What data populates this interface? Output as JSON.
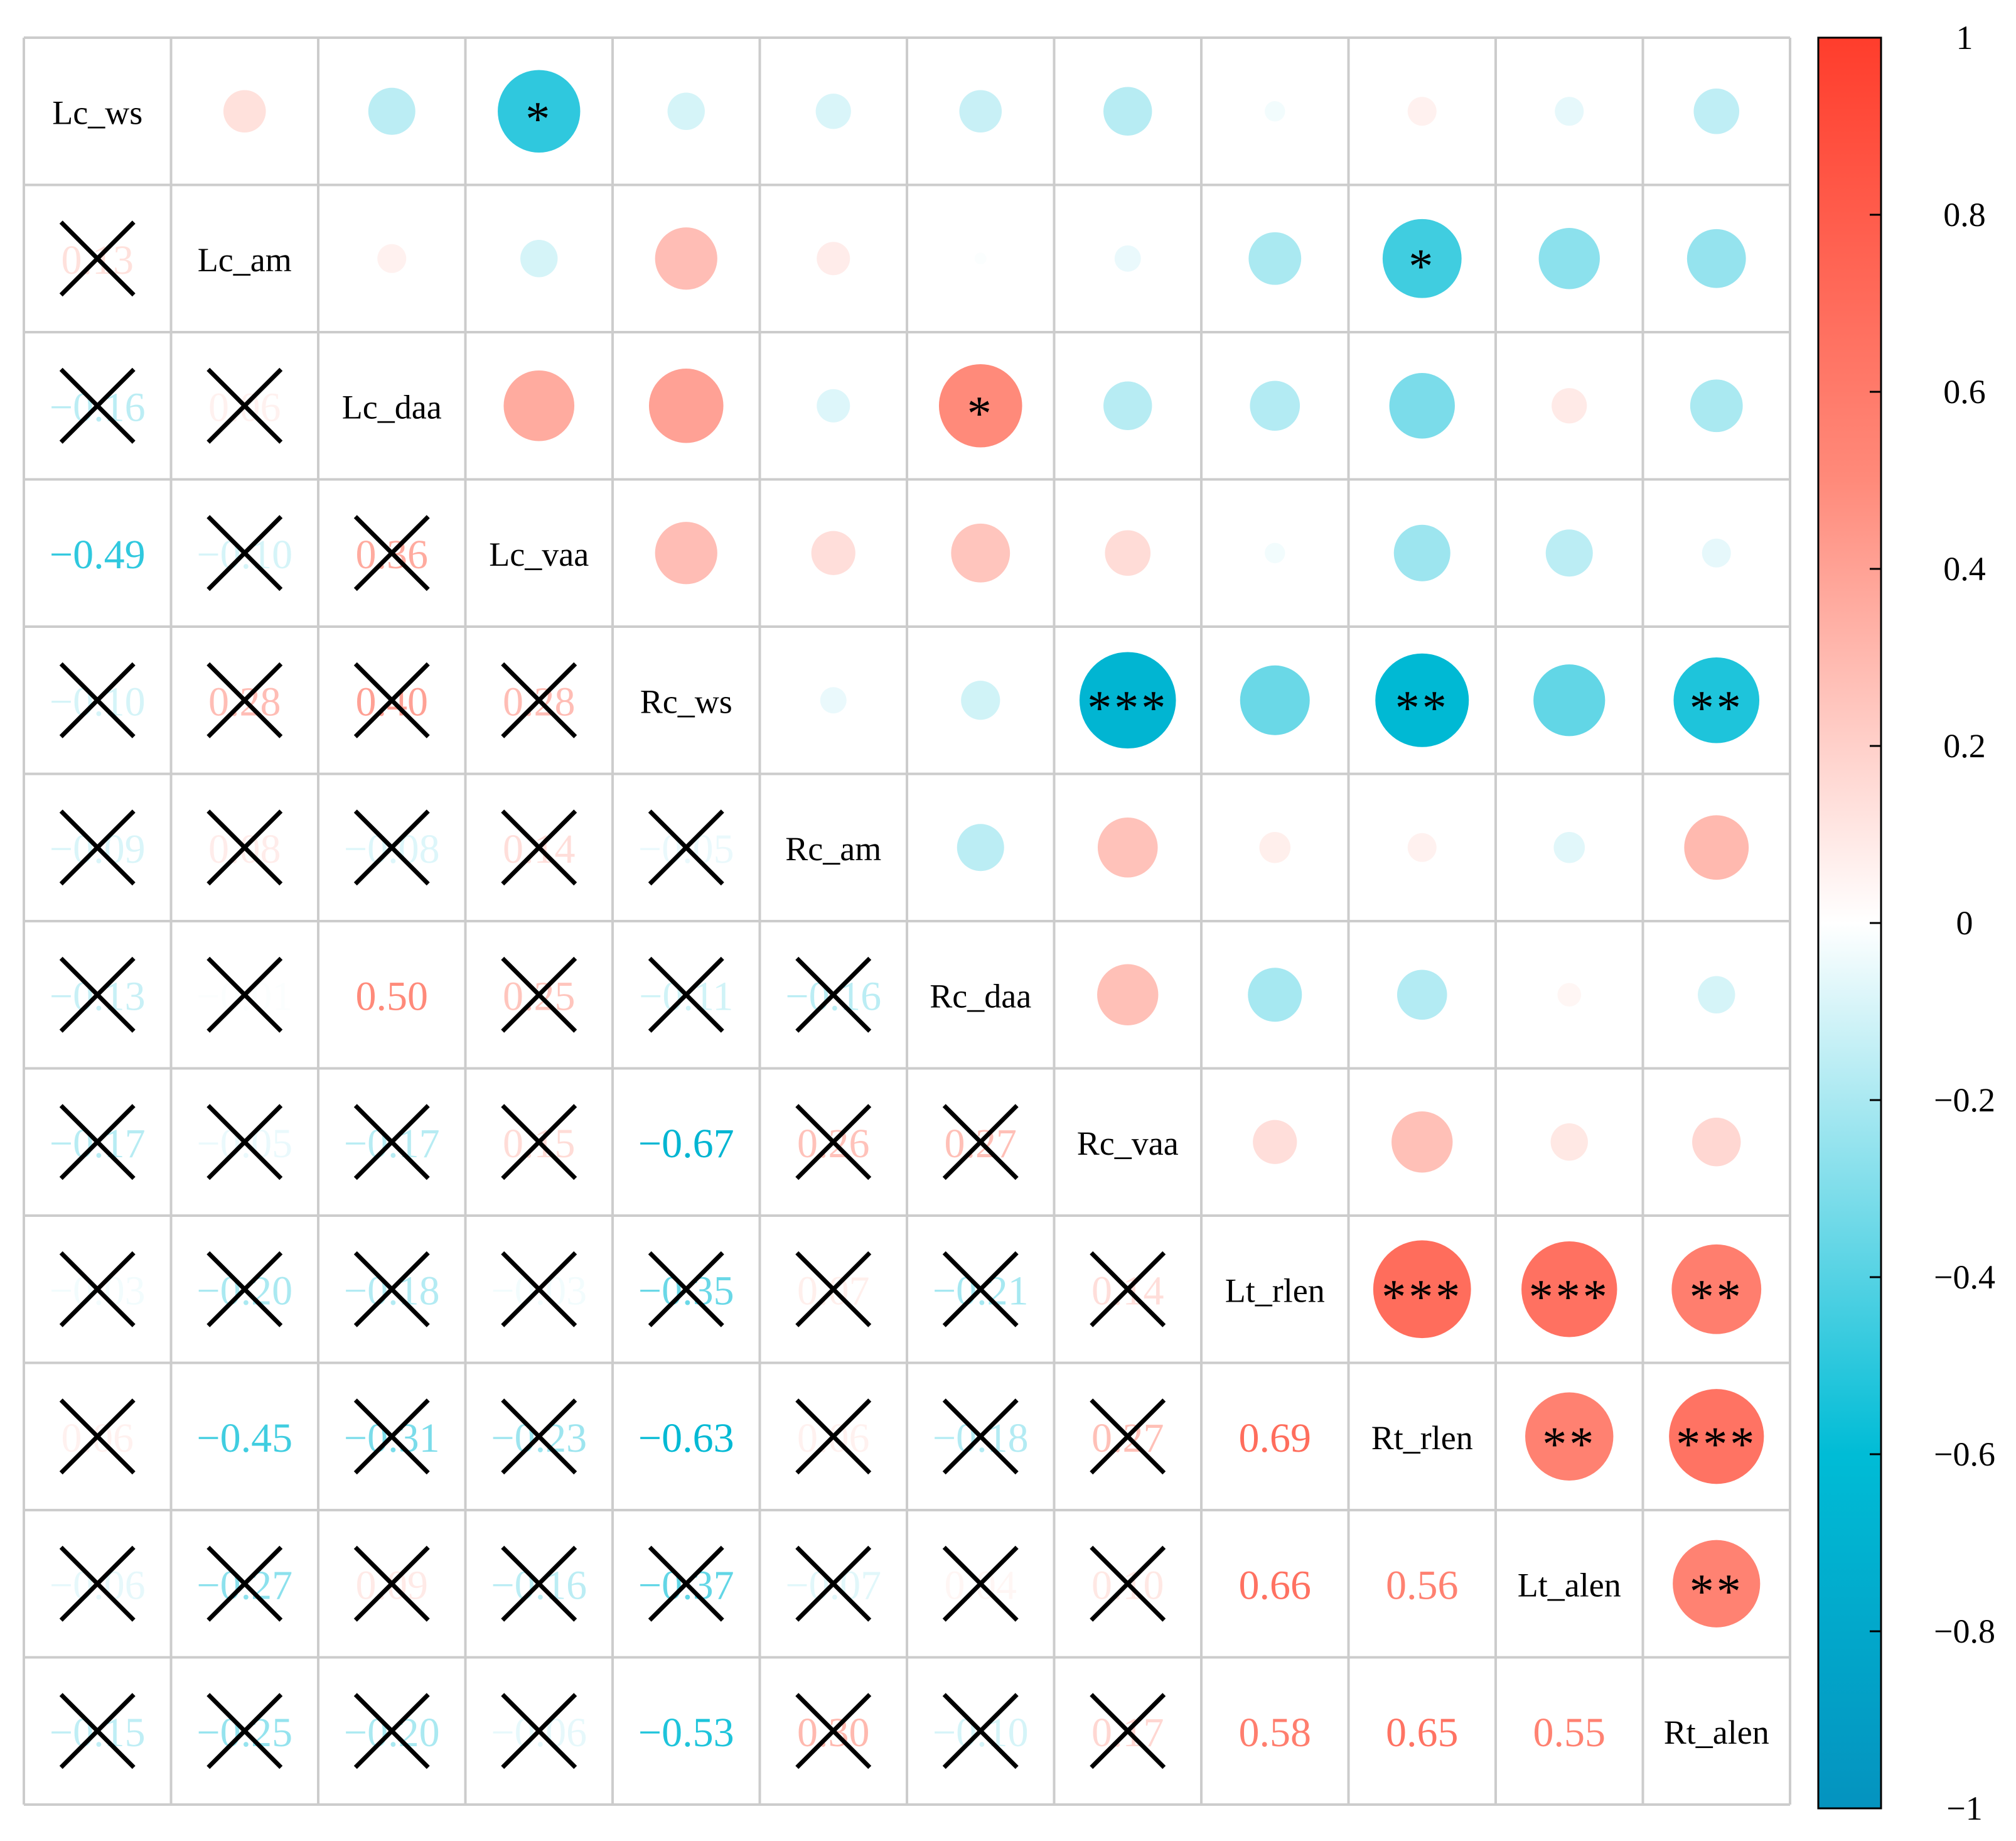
{
  "chart_data": {
    "type": "heatmap",
    "subtype": "correlation-matrix",
    "variables": [
      "Lc_ws",
      "Lc_am",
      "Lc_daa",
      "Lc_vaa",
      "Rc_ws",
      "Rc_am",
      "Rc_daa",
      "Rc_vaa",
      "Lt_rlen",
      "Rt_rlen",
      "Lt_alen",
      "Rt_alen"
    ],
    "matrix": [
      [
        1,
        0.13,
        -0.16,
        -0.49,
        -0.1,
        -0.09,
        -0.13,
        -0.17,
        -0.03,
        0.06,
        -0.06,
        -0.15
      ],
      [
        0.13,
        1,
        0.06,
        -0.1,
        0.28,
        0.08,
        -0.01,
        -0.05,
        -0.2,
        -0.45,
        -0.27,
        -0.25
      ],
      [
        -0.16,
        0.06,
        1,
        0.36,
        0.4,
        -0.08,
        0.5,
        -0.17,
        -0.18,
        -0.31,
        0.09,
        -0.2
      ],
      [
        -0.49,
        -0.1,
        0.36,
        1,
        0.28,
        0.14,
        0.25,
        0.15,
        -0.03,
        -0.23,
        -0.16,
        -0.06
      ],
      [
        -0.1,
        0.28,
        0.4,
        0.28,
        1,
        -0.05,
        -0.11,
        -0.67,
        -0.35,
        -0.63,
        -0.37,
        -0.53
      ],
      [
        -0.09,
        0.08,
        -0.08,
        0.14,
        -0.05,
        1,
        -0.16,
        0.26,
        0.07,
        0.06,
        -0.07,
        0.3
      ],
      [
        -0.13,
        -0.01,
        0.5,
        0.25,
        -0.11,
        -0.16,
        1,
        0.27,
        -0.21,
        -0.18,
        0.04,
        -0.1
      ],
      [
        -0.17,
        -0.05,
        -0.17,
        0.15,
        -0.67,
        0.26,
        0.27,
        1,
        0.14,
        0.27,
        0.1,
        0.17
      ],
      [
        -0.03,
        -0.2,
        -0.18,
        -0.03,
        -0.35,
        0.07,
        -0.21,
        0.14,
        1,
        0.69,
        0.66,
        0.58
      ],
      [
        0.06,
        -0.45,
        -0.31,
        -0.23,
        -0.63,
        0.06,
        -0.18,
        0.27,
        0.69,
        1,
        0.56,
        0.65
      ],
      [
        -0.06,
        -0.27,
        0.09,
        -0.16,
        -0.37,
        -0.07,
        0.04,
        0.1,
        0.66,
        0.56,
        1,
        0.55
      ],
      [
        -0.15,
        -0.25,
        -0.2,
        -0.06,
        -0.53,
        0.3,
        -0.1,
        0.17,
        0.58,
        0.65,
        0.55,
        1
      ]
    ],
    "significance": [
      [
        "",
        "",
        "",
        "*",
        "",
        "",
        "",
        "",
        "",
        "",
        "",
        ""
      ],
      [
        "",
        "",
        "",
        "",
        "",
        "",
        "",
        "",
        "",
        "*",
        "",
        ""
      ],
      [
        "",
        "",
        "",
        "",
        "",
        "",
        "*",
        "",
        "",
        "",
        "",
        ""
      ],
      [
        "*",
        "",
        "",
        "",
        "",
        "",
        "",
        "",
        "",
        "",
        "",
        ""
      ],
      [
        "",
        "",
        "",
        "",
        "",
        "",
        "",
        "***",
        "",
        "**",
        "",
        "**"
      ],
      [
        "",
        "",
        "",
        "",
        "",
        "",
        "",
        "",
        "",
        "",
        "",
        ""
      ],
      [
        "",
        "",
        "*",
        "",
        "",
        "",
        "",
        "",
        "",
        "",
        "",
        ""
      ],
      [
        "",
        "",
        "",
        "",
        "***",
        "",
        "",
        "",
        "",
        "",
        "",
        ""
      ],
      [
        "",
        "",
        "",
        "",
        "",
        "",
        "",
        "",
        "",
        "***",
        "***",
        "**"
      ],
      [
        "",
        "*",
        "",
        "",
        "**",
        "",
        "",
        "",
        "***",
        "",
        "**",
        "***"
      ],
      [
        "",
        "",
        "",
        "",
        "",
        "",
        "",
        "",
        "***",
        "**",
        "",
        "**"
      ],
      [
        "",
        "",
        "",
        "",
        "**",
        "",
        "",
        "",
        "**",
        "***",
        "**",
        ""
      ]
    ],
    "upper_triangle": "circles",
    "lower_triangle": "numbers",
    "insignificant_marker": "cross",
    "colorbar": {
      "range": [
        -1,
        1
      ],
      "ticks": [
        "1",
        "0.8",
        "0.6",
        "0.4",
        "0.2",
        "0",
        "−0.2",
        "−0.4",
        "−0.6",
        "−0.8",
        "−1"
      ]
    },
    "colors": {
      "negative_end": "#0493bf",
      "negative_mid": "#00bcd6",
      "neutral": "#ffffff",
      "positive_mid": "#ff8a7a",
      "positive_end": "#ff3d2c",
      "grid": "#cccccc",
      "cross": "#000000"
    }
  }
}
